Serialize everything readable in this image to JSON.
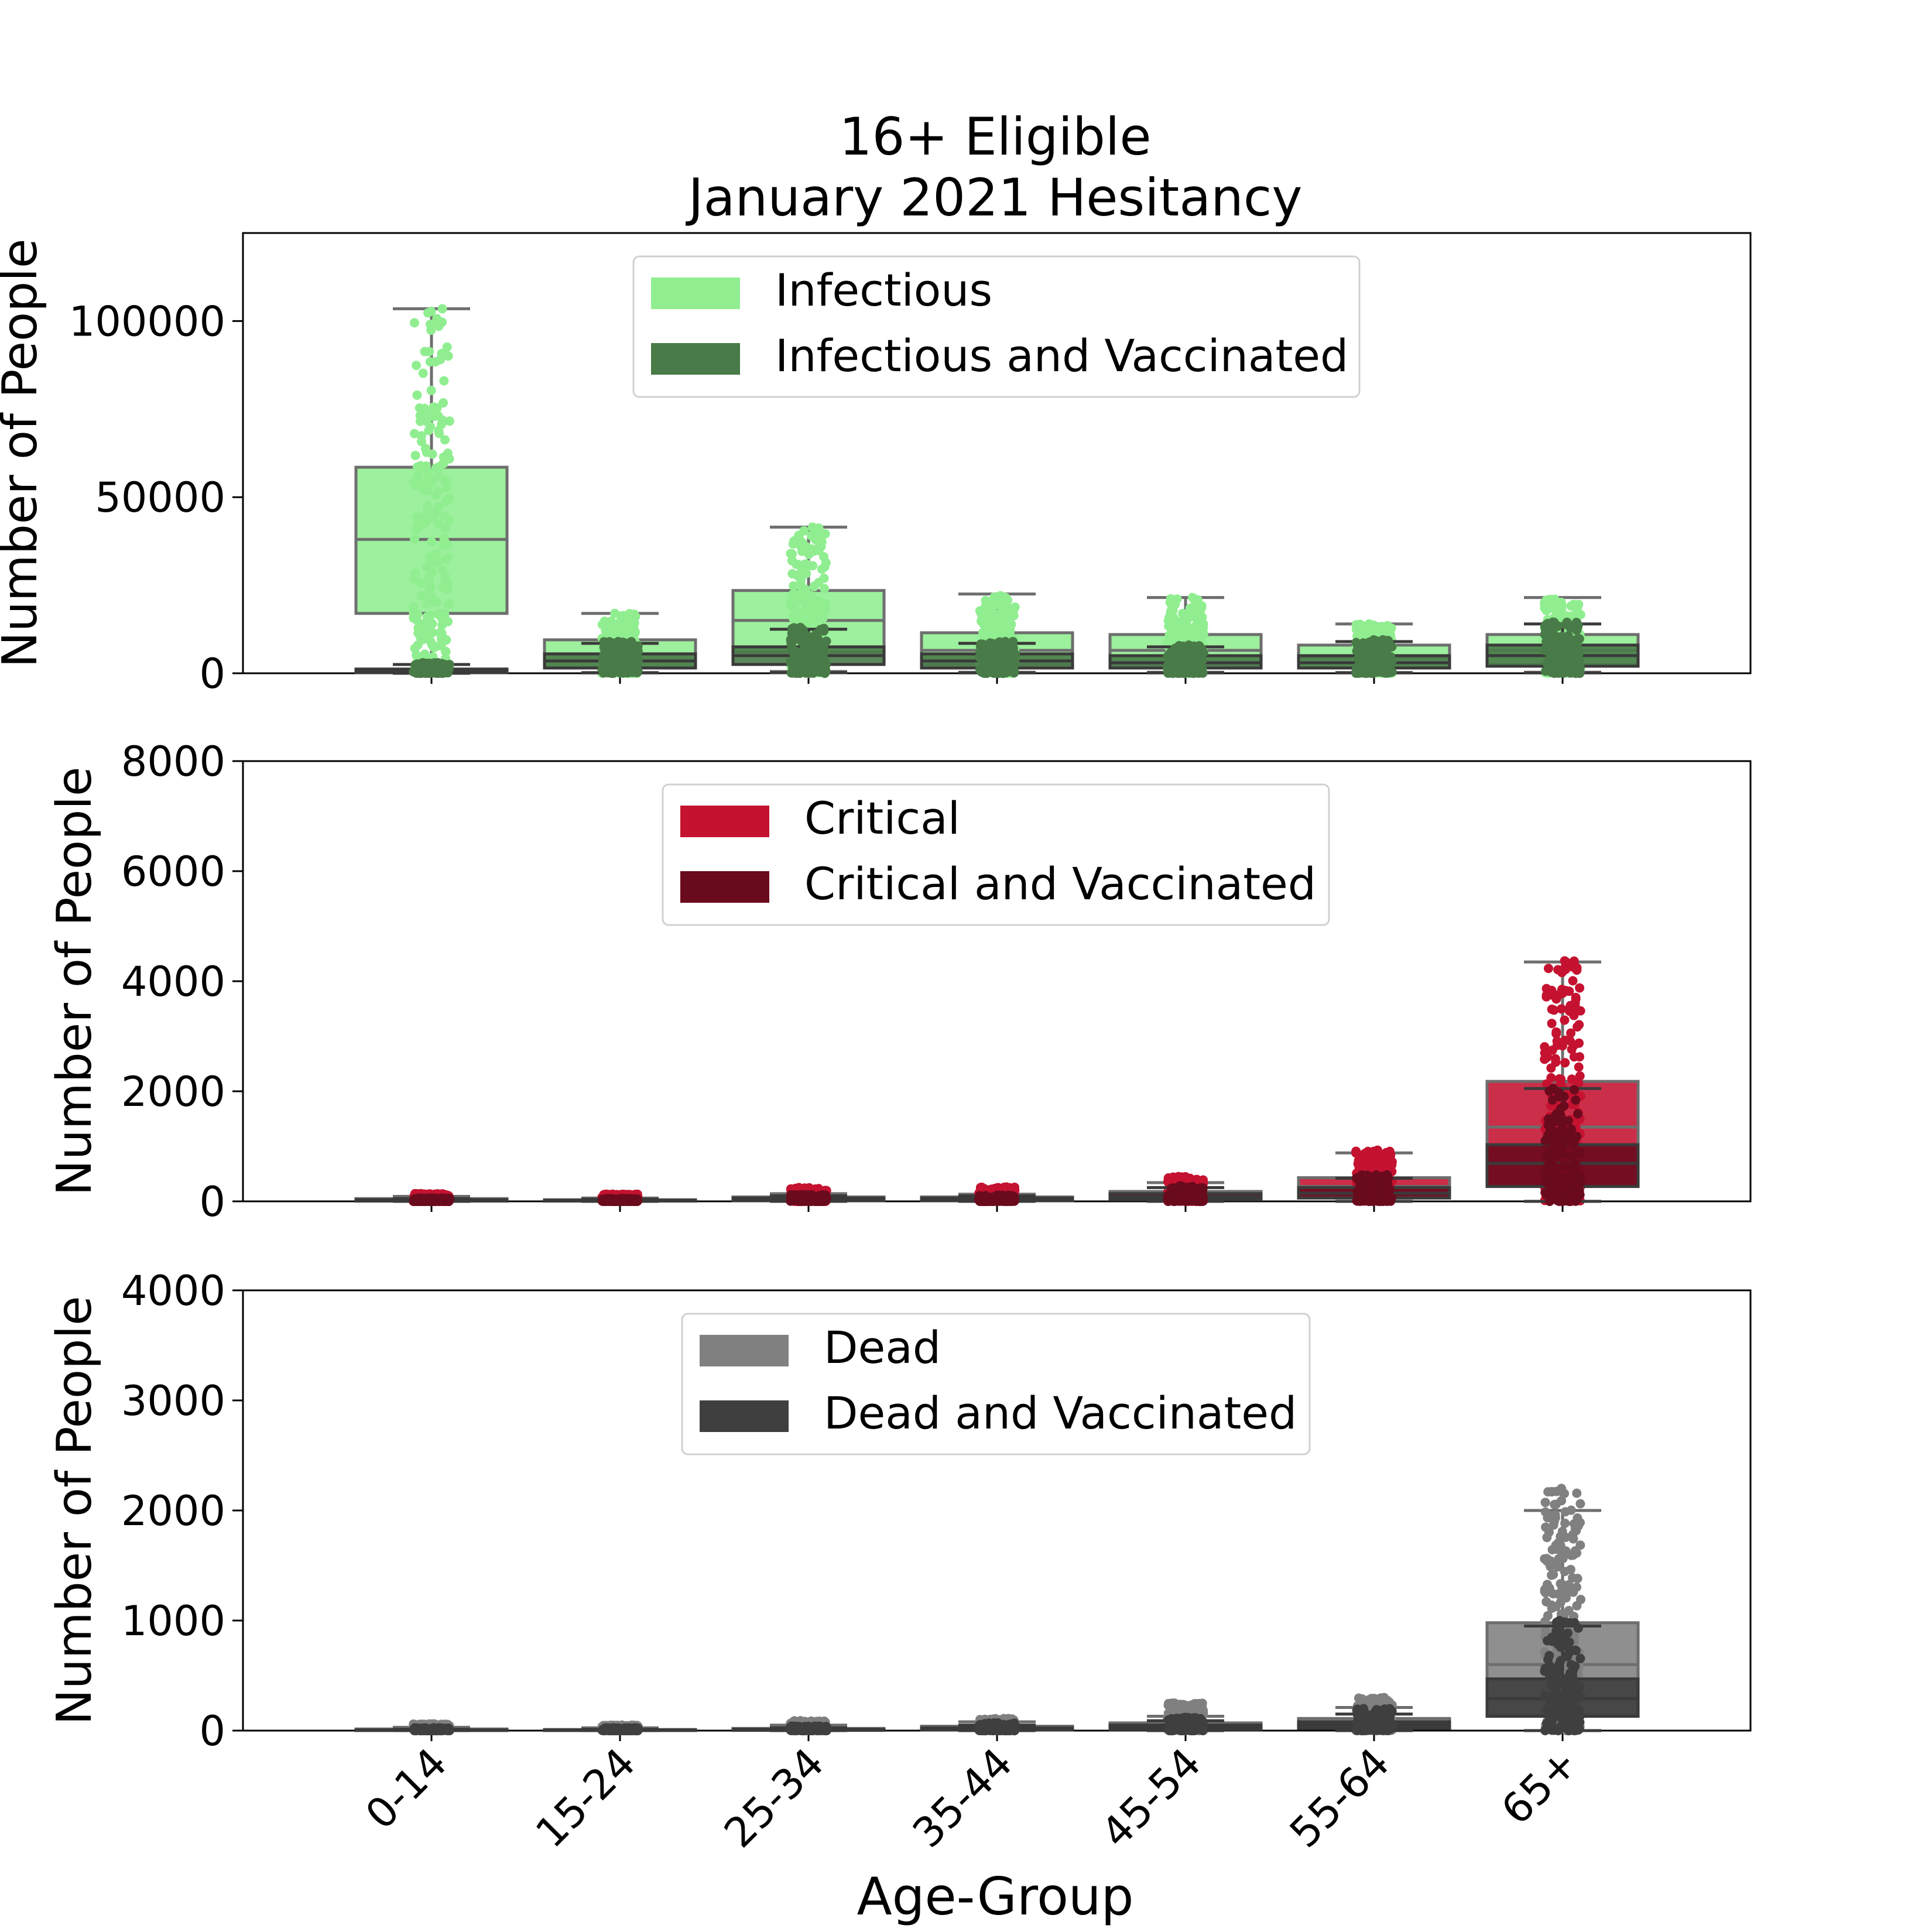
{
  "title_line1": "16+ Eligible",
  "title_line2": "January 2021 Hesitancy",
  "xlabel": "Age-Group",
  "chart_data": [
    {
      "type": "box",
      "title": "16+ Eligible\nJanuary 2021 Hesitancy",
      "categories": [
        "0-14",
        "15-24",
        "25-34",
        "35-44",
        "45-54",
        "55-64",
        "65+"
      ],
      "ylabel": "Number of People",
      "ylim": [
        0,
        125000
      ],
      "yticks": [
        0,
        50000,
        100000
      ],
      "legend_position": "upper center",
      "colors": {
        "primary": "#90EE90",
        "secondary": "#497B48"
      },
      "series": [
        {
          "name": "Infectious",
          "color": "#90EE90",
          "values": [
            {
              "whislo": 0,
              "q1": 17000,
              "med": 38000,
              "q3": 58500,
              "whishi": 103500,
              "pts_max": 103500
            },
            {
              "whislo": 200,
              "q1": 1500,
              "med": 5500,
              "q3": 9500,
              "whishi": 17000,
              "pts_max": 17000
            },
            {
              "whislo": 500,
              "q1": 6000,
              "med": 15000,
              "q3": 23500,
              "whishi": 41500,
              "pts_max": 41500
            },
            {
              "whislo": 300,
              "q1": 2500,
              "med": 6500,
              "q3": 11500,
              "whishi": 22500,
              "pts_max": 22000
            },
            {
              "whislo": 300,
              "q1": 2500,
              "med": 6500,
              "q3": 11000,
              "whishi": 21500,
              "pts_max": 21500
            },
            {
              "whislo": 200,
              "q1": 1500,
              "med": 4500,
              "q3": 8000,
              "whishi": 14000,
              "pts_max": 14000
            },
            {
              "whislo": 300,
              "q1": 2500,
              "med": 6500,
              "q3": 11000,
              "whishi": 21500,
              "pts_max": 21000
            }
          ]
        },
        {
          "name": "Infectious and Vaccinated",
          "color": "#497B48",
          "values": [
            {
              "whislo": 0,
              "q1": 200,
              "med": 700,
              "q3": 1200,
              "whishi": 2500,
              "pts_max": 3000
            },
            {
              "whislo": 100,
              "q1": 1500,
              "med": 3500,
              "q3": 5500,
              "whishi": 8500,
              "pts_max": 9000
            },
            {
              "whislo": 200,
              "q1": 2500,
              "med": 5000,
              "q3": 7500,
              "whishi": 12500,
              "pts_max": 13000
            },
            {
              "whislo": 100,
              "q1": 1500,
              "med": 3500,
              "q3": 5500,
              "whishi": 8500,
              "pts_max": 9000
            },
            {
              "whislo": 100,
              "q1": 1500,
              "med": 3000,
              "q3": 5000,
              "whishi": 7500,
              "pts_max": 8000
            },
            {
              "whislo": 100,
              "q1": 1500,
              "med": 3000,
              "q3": 5000,
              "whishi": 9000,
              "pts_max": 9500
            },
            {
              "whislo": 100,
              "q1": 2000,
              "med": 5000,
              "q3": 8000,
              "whishi": 14000,
              "pts_max": 14500
            }
          ]
        }
      ]
    },
    {
      "type": "box",
      "categories": [
        "0-14",
        "15-24",
        "25-34",
        "35-44",
        "45-54",
        "55-64",
        "65+"
      ],
      "ylabel": "Number of People",
      "ylim": [
        0,
        8000
      ],
      "yticks": [
        0,
        2000,
        4000,
        6000,
        8000
      ],
      "legend_position": "upper center",
      "colors": {
        "primary": "#C41230",
        "secondary": "#6A0A1D"
      },
      "series": [
        {
          "name": "Critical",
          "color": "#C41230",
          "values": [
            {
              "whislo": 0,
              "q1": 10,
              "med": 30,
              "q3": 50,
              "whishi": 90,
              "pts_max": 140
            },
            {
              "whislo": 0,
              "q1": 10,
              "med": 20,
              "q3": 30,
              "whishi": 60,
              "pts_max": 130
            },
            {
              "whislo": 0,
              "q1": 20,
              "med": 50,
              "q3": 80,
              "whishi": 140,
              "pts_max": 250
            },
            {
              "whislo": 0,
              "q1": 20,
              "med": 50,
              "q3": 80,
              "whishi": 130,
              "pts_max": 260
            },
            {
              "whislo": 0,
              "q1": 50,
              "med": 120,
              "q3": 180,
              "whishi": 340,
              "pts_max": 450
            },
            {
              "whislo": 0,
              "q1": 120,
              "med": 270,
              "q3": 430,
              "whishi": 880,
              "pts_max": 930
            },
            {
              "whislo": 0,
              "q1": 270,
              "med": 1350,
              "q3": 2180,
              "whishi": 4350,
              "pts_max": 4370
            }
          ]
        },
        {
          "name": "Critical and Vaccinated",
          "color": "#6A0A1D",
          "values": [
            {
              "whislo": 0,
              "q1": 5,
              "med": 15,
              "q3": 30,
              "whishi": 50,
              "pts_max": 60
            },
            {
              "whislo": 0,
              "q1": 5,
              "med": 10,
              "q3": 20,
              "whishi": 40,
              "pts_max": 50
            },
            {
              "whislo": 0,
              "q1": 10,
              "med": 30,
              "q3": 60,
              "whishi": 100,
              "pts_max": 120
            },
            {
              "whislo": 0,
              "q1": 10,
              "med": 30,
              "q3": 60,
              "whishi": 100,
              "pts_max": 110
            },
            {
              "whislo": 0,
              "q1": 30,
              "med": 80,
              "q3": 140,
              "whishi": 250,
              "pts_max": 280
            },
            {
              "whislo": 0,
              "q1": 60,
              "med": 150,
              "q3": 250,
              "whishi": 420,
              "pts_max": 480
            },
            {
              "whislo": 0,
              "q1": 270,
              "med": 690,
              "q3": 1030,
              "whishi": 2050,
              "pts_max": 2050
            }
          ]
        }
      ]
    },
    {
      "type": "box",
      "categories": [
        "0-14",
        "15-24",
        "25-34",
        "35-44",
        "45-54",
        "55-64",
        "65+"
      ],
      "ylabel": "Number of People",
      "xlabel": "Age-Group",
      "ylim": [
        0,
        4000
      ],
      "yticks": [
        0,
        1000,
        2000,
        3000,
        4000
      ],
      "legend_position": "upper center",
      "colors": {
        "primary": "#808080",
        "secondary": "#3F3F3F"
      },
      "series": [
        {
          "name": "Dead",
          "color": "#808080",
          "values": [
            {
              "whislo": 0,
              "q1": 2,
              "med": 8,
              "q3": 15,
              "whishi": 30,
              "pts_max": 60
            },
            {
              "whislo": 0,
              "q1": 2,
              "med": 6,
              "q3": 10,
              "whishi": 25,
              "pts_max": 50
            },
            {
              "whislo": 0,
              "q1": 3,
              "med": 10,
              "q3": 20,
              "whishi": 50,
              "pts_max": 90
            },
            {
              "whislo": 0,
              "q1": 8,
              "med": 20,
              "q3": 40,
              "whishi": 80,
              "pts_max": 110
            },
            {
              "whislo": 0,
              "q1": 15,
              "med": 40,
              "q3": 70,
              "whishi": 130,
              "pts_max": 250
            },
            {
              "whislo": 0,
              "q1": 30,
              "med": 70,
              "q3": 110,
              "whishi": 210,
              "pts_max": 300
            },
            {
              "whislo": 0,
              "q1": 140,
              "med": 600,
              "q3": 980,
              "whishi": 2000,
              "pts_max": 2200
            }
          ]
        },
        {
          "name": "Dead and Vaccinated",
          "color": "#3F3F3F",
          "values": [
            {
              "whislo": 0,
              "q1": 1,
              "med": 3,
              "q3": 6,
              "whishi": 12,
              "pts_max": 25
            },
            {
              "whislo": 0,
              "q1": 1,
              "med": 3,
              "q3": 6,
              "whishi": 12,
              "pts_max": 25
            },
            {
              "whislo": 0,
              "q1": 2,
              "med": 6,
              "q3": 12,
              "whishi": 25,
              "pts_max": 40
            },
            {
              "whislo": 0,
              "q1": 5,
              "med": 12,
              "q3": 25,
              "whishi": 50,
              "pts_max": 70
            },
            {
              "whislo": 0,
              "q1": 10,
              "med": 30,
              "q3": 50,
              "whishi": 90,
              "pts_max": 120
            },
            {
              "whislo": 0,
              "q1": 20,
              "med": 50,
              "q3": 80,
              "whishi": 150,
              "pts_max": 200
            },
            {
              "whislo": 0,
              "q1": 130,
              "med": 290,
              "q3": 470,
              "whishi": 950,
              "pts_max": 1000
            }
          ]
        }
      ]
    }
  ]
}
